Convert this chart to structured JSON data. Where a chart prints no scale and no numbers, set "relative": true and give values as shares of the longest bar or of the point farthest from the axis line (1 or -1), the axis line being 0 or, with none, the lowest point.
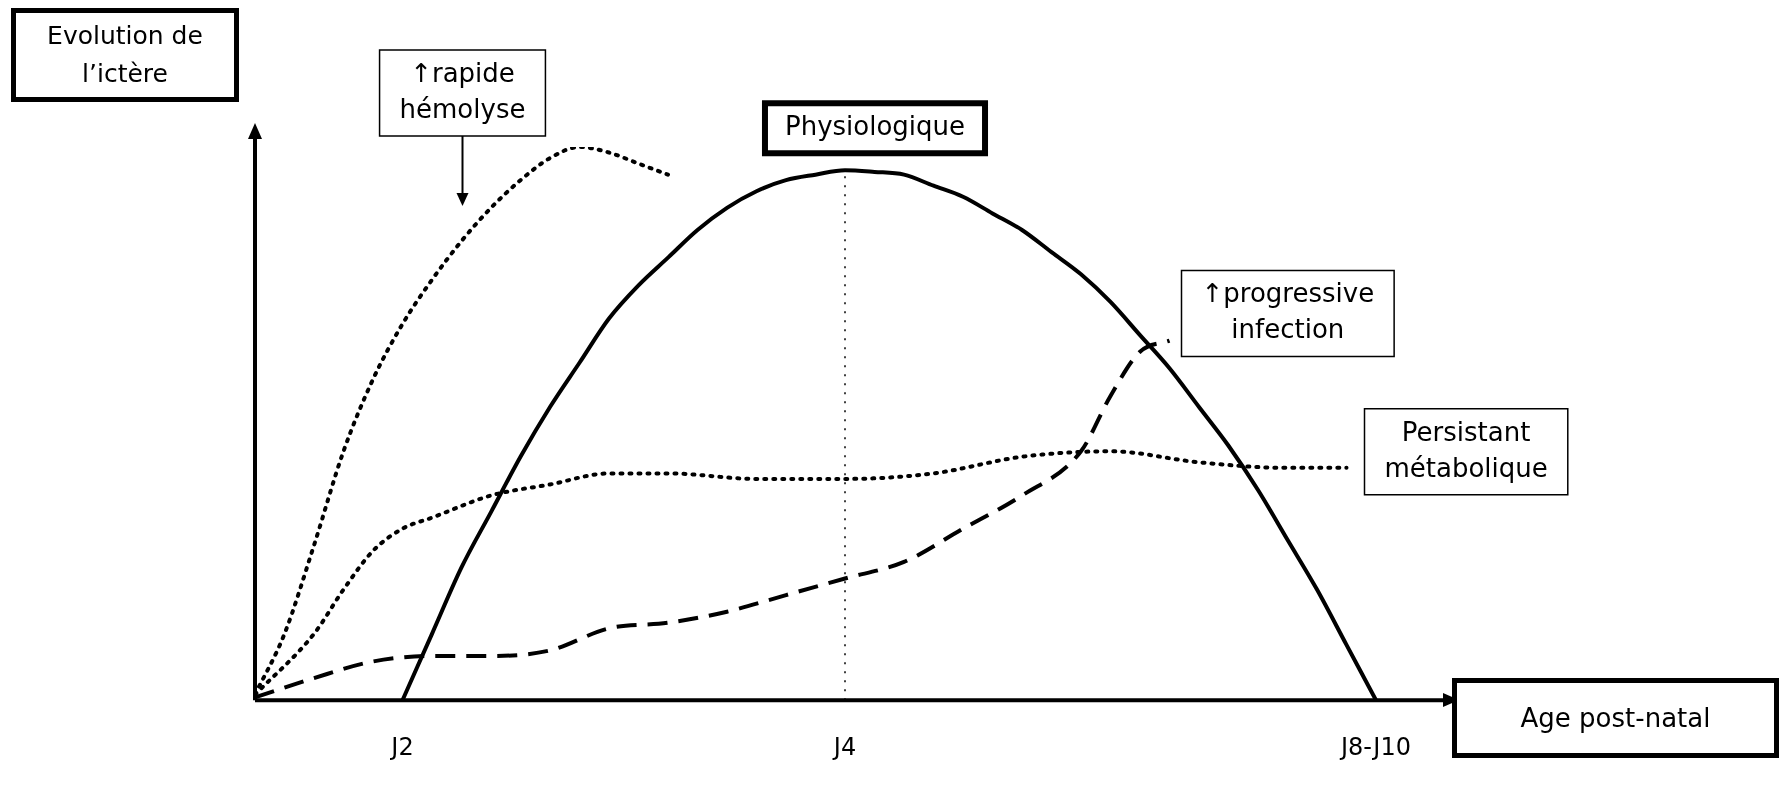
{
  "chart_data": {
    "type": "line",
    "relative": true,
    "xlabel": "Age post-natal",
    "ylabel": "Evolution de l’ictère",
    "categories": [
      null,
      null,
      null,
      null,
      null,
      "J2",
      null,
      null,
      null,
      null,
      null,
      null,
      null,
      null,
      null,
      null,
      null,
      null,
      null,
      null,
      "J4",
      null,
      null,
      null,
      null,
      null,
      null,
      null,
      null,
      null,
      null,
      null,
      null,
      null,
      null,
      null,
      null,
      null,
      "J8-J10",
      null,
      null
    ],
    "series": [
      {
        "name": "Physiologique",
        "color": "#000000",
        "line_style": "solid",
        "values": [
          null,
          null,
          null,
          null,
          null,
          0,
          0.12,
          0.24,
          0.34,
          0.44,
          0.53,
          0.61,
          0.69,
          0.75,
          0.8,
          0.85,
          0.89,
          0.92,
          0.94,
          0.95,
          0.958,
          0.955,
          0.95,
          0.93,
          0.91,
          0.88,
          0.85,
          0.81,
          0.77,
          0.72,
          0.66,
          0.6,
          0.53,
          0.46,
          0.38,
          0.29,
          0.2,
          0.1,
          0,
          null,
          null
        ]
      },
      {
        "name": "↑rapide hémolyse",
        "color": "#000000",
        "line_style": "dotted",
        "values": [
          0.01,
          0.12,
          0.28,
          0.45,
          0.58,
          0.68,
          0.76,
          0.83,
          0.89,
          0.94,
          0.98,
          1,
          0.99,
          0.97,
          0.95,
          null,
          null,
          null,
          null,
          null,
          null,
          null,
          null,
          null,
          null,
          null,
          null,
          null,
          null,
          null,
          null,
          null,
          null,
          null,
          null,
          null,
          null,
          null,
          null,
          null,
          null
        ]
      },
      {
        "name": "Persistant métabolique",
        "color": "#000000",
        "line_style": "dotted",
        "values": [
          0.01,
          null,
          0.12,
          0.2,
          0.27,
          0.31,
          0.33,
          null,
          0.37,
          null,
          0.39,
          null,
          0.41,
          null,
          0.41,
          null,
          null,
          0.4,
          null,
          null,
          0.4,
          null,
          null,
          0.41,
          null,
          null,
          0.44,
          null,
          null,
          0.45,
          null,
          null,
          0.43,
          null,
          null,
          0.42,
          null,
          0.42,
          null,
          null,
          null
        ]
      },
      {
        "name": "↑progressive infection",
        "color": "#000000",
        "line_style": "dashed",
        "values": [
          0.005,
          null,
          0.04,
          null,
          0.07,
          null,
          0.08,
          null,
          0.08,
          null,
          0.09,
          null,
          0.13,
          null,
          0.14,
          null,
          0.16,
          null,
          0.19,
          null,
          0.22,
          null,
          0.25,
          null,
          0.31,
          null,
          0.37,
          null,
          0.45,
          0.55,
          0.63,
          0.65,
          null,
          null,
          null,
          null,
          null,
          null,
          null,
          null,
          null
        ]
      }
    ],
    "ref_lines": [
      {
        "axis": "x",
        "value": "J4",
        "color": "#000000",
        "line_style": "dotted"
      }
    ],
    "grid": false,
    "legend": false,
    "marker": "none",
    "tick_labels": "x"
  }
}
